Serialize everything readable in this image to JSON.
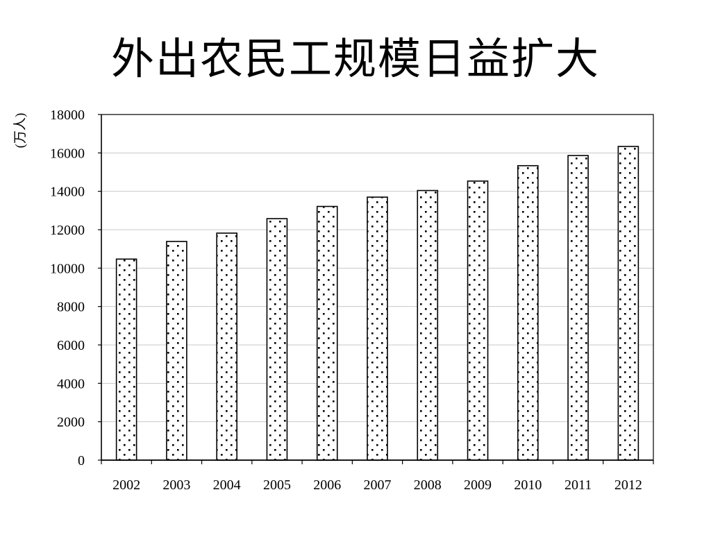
{
  "chart_data": {
    "type": "bar",
    "title": "外出农民工规模日益扩大",
    "ylabel": "(万人)",
    "xlabel": "",
    "categories": [
      "2002",
      "2003",
      "2004",
      "2005",
      "2006",
      "2007",
      "2008",
      "2009",
      "2010",
      "2011",
      "2012"
    ],
    "values": [
      10470,
      11390,
      11823,
      12578,
      13212,
      13697,
      14041,
      14533,
      15335,
      15863,
      16336
    ],
    "ylim": [
      0,
      18000
    ],
    "yticks": [
      "0",
      "2000",
      "4000",
      "6000",
      "8000",
      "10000",
      "12000",
      "14000",
      "16000",
      "18000"
    ],
    "grid": true,
    "legend": "none",
    "bar_fill": "dotted",
    "colors": {
      "bar_stroke": "#000000",
      "bar_dots": "#000000",
      "grid": "#c8c8c8",
      "axis": "#000000"
    }
  }
}
